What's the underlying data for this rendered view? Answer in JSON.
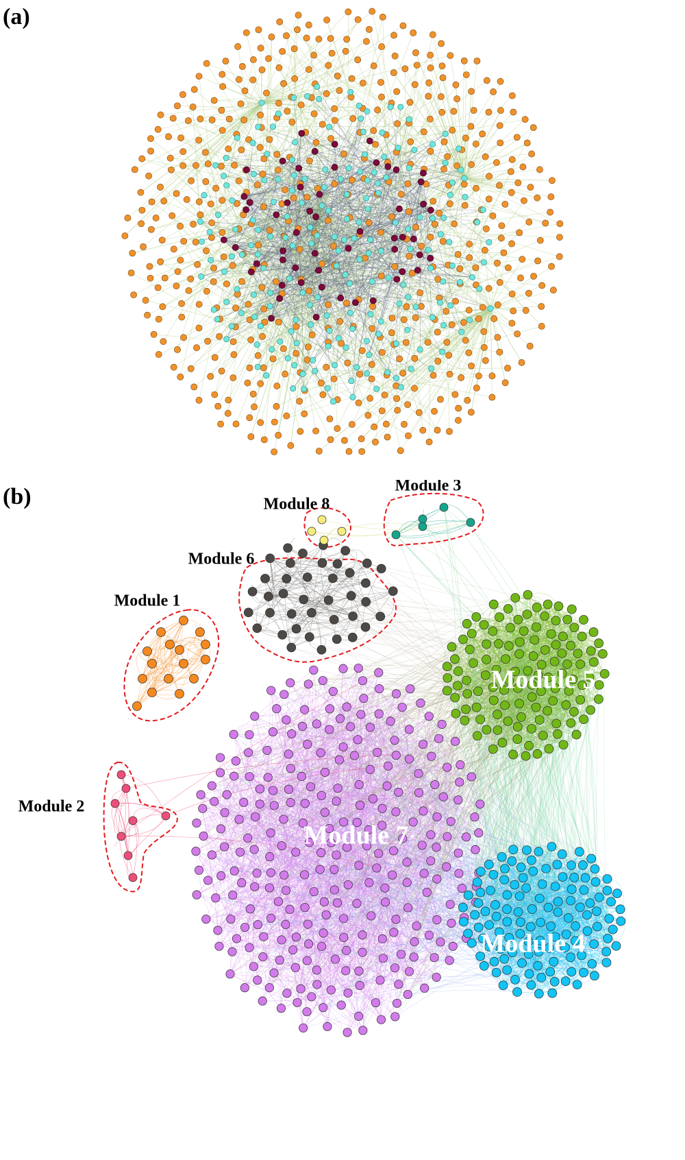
{
  "panel_a": {
    "label": "(a)",
    "node_colors": {
      "outer": "#f0922b",
      "middle": "#6fe6dc",
      "core": "#7a0b3a"
    },
    "edge_colors": {
      "outer": "#b5cf8f",
      "core": "#5e6480"
    }
  },
  "panel_b": {
    "label": "(b)",
    "outline_color": "#e41a1c",
    "modules": [
      {
        "id": "m1",
        "label": "Module 1",
        "color": "#f5891f"
      },
      {
        "id": "m2",
        "label": "Module 2",
        "color": "#ee4f7a"
      },
      {
        "id": "m3",
        "label": "Module 3",
        "color": "#16a58c"
      },
      {
        "id": "m4",
        "label": "Module 4",
        "color": "#13c4f4"
      },
      {
        "id": "m5",
        "label": "Module 5",
        "color": "#72b718"
      },
      {
        "id": "m6",
        "label": "Module 6",
        "color": "#4d4946"
      },
      {
        "id": "m7",
        "label": "Module 7",
        "color": "#d27bea"
      },
      {
        "id": "m8",
        "label": "Module 8",
        "color": "#f6ec7c"
      }
    ]
  }
}
